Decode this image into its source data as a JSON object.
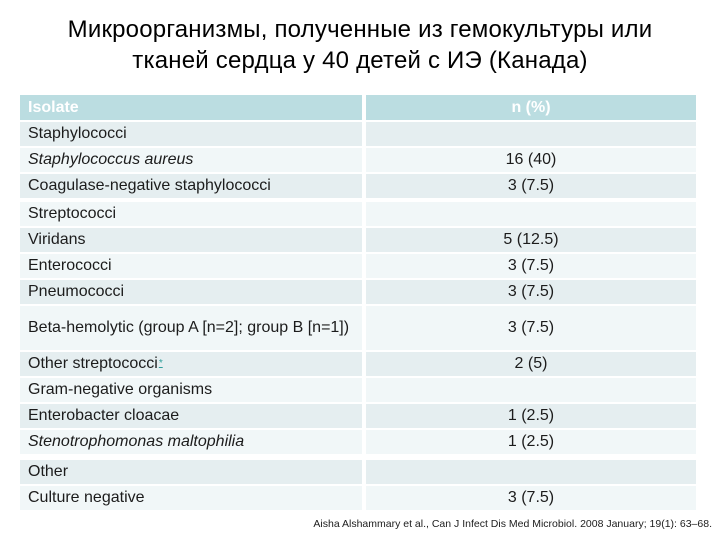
{
  "slide": {
    "title": "Микроорганизмы, полученные из гемокультуры или\nтканей сердца у 40 детей с ИЭ (Канада)",
    "footer": "Aisha Alshammary et al., Can J Infect Dis Med Microbiol. 2008 January; 19(1): 63–68."
  },
  "colors": {
    "header_bg": "#bbdde1",
    "row_dark": "#e5eef0",
    "row_light": "#f1f7f8",
    "footnote_mark": "#2f9e9b"
  },
  "table": {
    "columns": [
      "Isolate",
      "n (%)"
    ],
    "rows": [
      {
        "label": "Staphylococci",
        "value": ""
      },
      {
        "label": "Staphylococcus aureus",
        "value": "16 (40)"
      },
      {
        "label": "Coagulase-negative staphylococci",
        "value": "3 (7.5)"
      },
      {
        "label": "Streptococci",
        "value": ""
      },
      {
        "label": "Viridans",
        "value": "5 (12.5)"
      },
      {
        "label": "Enterococci",
        "value": "3 (7.5)"
      },
      {
        "label": "Pneumococci",
        "value": "3 (7.5)"
      },
      {
        "label": "Beta-hemolytic (group A [n=2]; group B [n=1])",
        "value": "3 (7.5)"
      },
      {
        "label": "Other streptococci",
        "superscript": "*",
        "value": "2 (5)"
      },
      {
        "label": "Gram-negative organisms",
        "value": ""
      },
      {
        "label": "Enterobacter cloacae",
        "value": "1 (2.5)"
      },
      {
        "label": "Stenotrophomonas maltophilia",
        "value": "1 (2.5)"
      },
      {
        "label": "Other",
        "value": ""
      },
      {
        "label": "Culture negative",
        "value": "3 (7.5)"
      }
    ]
  }
}
